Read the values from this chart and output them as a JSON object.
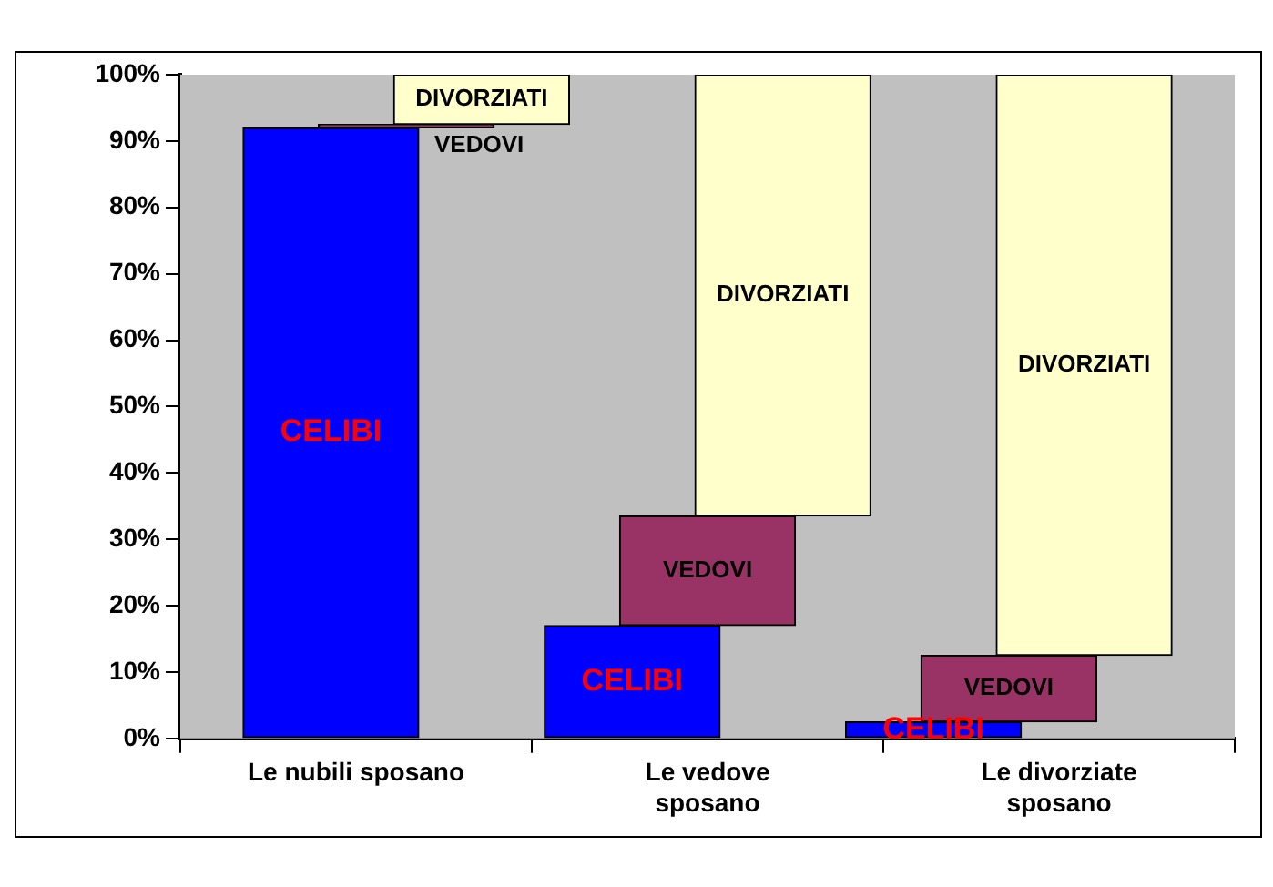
{
  "chart_data": {
    "type": "bar",
    "categories": [
      "Le nubili sposano",
      "Le vedove sposano",
      "Le divorziate sposano"
    ],
    "series": [
      {
        "name": "CELIBI",
        "color": "#0000ff",
        "values": [
          92,
          17,
          2.5
        ]
      },
      {
        "name": "VEDOVI",
        "color": "#993366",
        "values": [
          0.5,
          16.5,
          10
        ]
      },
      {
        "name": "DIVORZIATI",
        "color": "#ffffcc",
        "values": [
          7.5,
          66.5,
          87.5
        ]
      }
    ],
    "stacked": true,
    "ylim": [
      0,
      100
    ],
    "yticks": [
      {
        "value": 0,
        "label": "0%"
      },
      {
        "value": 10,
        "label": "10%"
      },
      {
        "value": 20,
        "label": "20%"
      },
      {
        "value": 30,
        "label": "30%"
      },
      {
        "value": 40,
        "label": "40%"
      },
      {
        "value": 50,
        "label": "50%"
      },
      {
        "value": 60,
        "label": "60%"
      },
      {
        "value": 70,
        "label": "70%"
      },
      {
        "value": 80,
        "label": "80%"
      },
      {
        "value": 90,
        "label": "90%"
      },
      {
        "value": 100,
        "label": "100%"
      }
    ],
    "grid": false,
    "legend": false
  }
}
